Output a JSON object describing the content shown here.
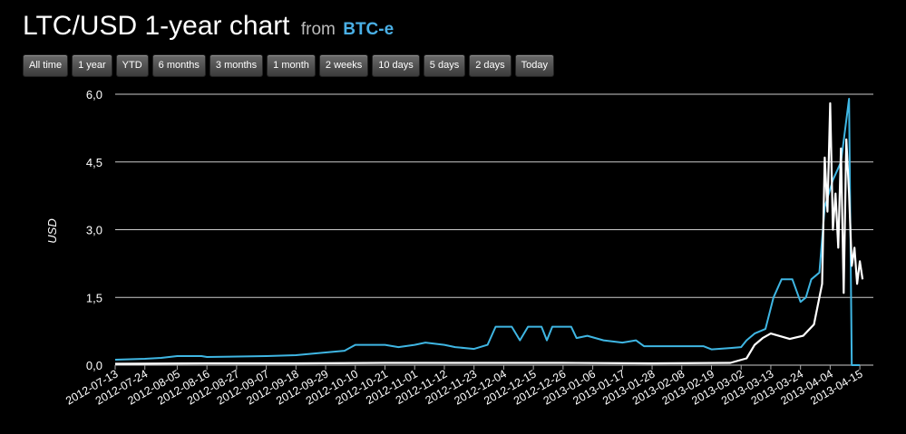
{
  "header": {
    "title": "LTC/USD 1-year chart",
    "from_label": "from",
    "source": "BTC-e"
  },
  "range_buttons": [
    "All time",
    "1 year",
    "YTD",
    "6 months",
    "3 months",
    "1 month",
    "2 weeks",
    "10 days",
    "5 days",
    "2 days",
    "Today"
  ],
  "colors": {
    "blue_series": "#3fb6e3",
    "white_series": "#ffffff",
    "grid": "#cccccc",
    "background": "#000000",
    "accent": "#4ab0e6"
  },
  "chart_data": {
    "type": "line",
    "ylabel": "USD",
    "ylim": [
      0,
      6
    ],
    "y_ticks": [
      "0,0",
      "1,5",
      "3,0",
      "4,5",
      "6,0"
    ],
    "y_tick_values": [
      0,
      1.5,
      3.0,
      4.5,
      6.0
    ],
    "xlim": [
      "2012-07-13",
      "2013-04-20"
    ],
    "x_ticks": [
      "2012-07-13",
      "2012-07-24",
      "2012-08-05",
      "2012-08-16",
      "2012-08-27",
      "2012-09-07",
      "2012-09-18",
      "2012-09-29",
      "2012-10-10",
      "2012-10-21",
      "2012-11-01",
      "2012-11-12",
      "2012-11-23",
      "2012-12-04",
      "2012-12-15",
      "2012-12-26",
      "2013-01-06",
      "2013-01-17",
      "2013-01-28",
      "2013-02-08",
      "2013-02-19",
      "2013-03-02",
      "2013-03-13",
      "2013-03-24",
      "2013-04-04",
      "2013-04-15"
    ],
    "grid": true,
    "series": [
      {
        "color": "#3fb6e3",
        "points": [
          [
            "2012-07-13",
            0.12
          ],
          [
            "2012-07-24",
            0.14
          ],
          [
            "2012-07-30",
            0.16
          ],
          [
            "2012-08-05",
            0.2
          ],
          [
            "2012-08-14",
            0.2
          ],
          [
            "2012-08-16",
            0.18
          ],
          [
            "2012-09-07",
            0.2
          ],
          [
            "2012-09-18",
            0.22
          ],
          [
            "2012-09-29",
            0.28
          ],
          [
            "2012-10-06",
            0.32
          ],
          [
            "2012-10-10",
            0.45
          ],
          [
            "2012-10-21",
            0.45
          ],
          [
            "2012-10-26",
            0.4
          ],
          [
            "2012-11-01",
            0.45
          ],
          [
            "2012-11-05",
            0.5
          ],
          [
            "2012-11-12",
            0.45
          ],
          [
            "2012-11-16",
            0.4
          ],
          [
            "2012-11-23",
            0.36
          ],
          [
            "2012-11-28",
            0.45
          ],
          [
            "2012-12-01",
            0.85
          ],
          [
            "2012-12-07",
            0.85
          ],
          [
            "2012-12-10",
            0.55
          ],
          [
            "2012-12-13",
            0.85
          ],
          [
            "2012-12-18",
            0.85
          ],
          [
            "2012-12-20",
            0.55
          ],
          [
            "2012-12-22",
            0.85
          ],
          [
            "2012-12-29",
            0.85
          ],
          [
            "2012-12-31",
            0.6
          ],
          [
            "2013-01-04",
            0.65
          ],
          [
            "2013-01-10",
            0.55
          ],
          [
            "2013-01-17",
            0.5
          ],
          [
            "2013-01-22",
            0.55
          ],
          [
            "2013-01-25",
            0.42
          ],
          [
            "2013-02-08",
            0.42
          ],
          [
            "2013-02-16",
            0.42
          ],
          [
            "2013-02-19",
            0.35
          ],
          [
            "2013-02-26",
            0.38
          ],
          [
            "2013-03-02",
            0.4
          ],
          [
            "2013-03-04",
            0.55
          ],
          [
            "2013-03-07",
            0.7
          ],
          [
            "2013-03-11",
            0.8
          ],
          [
            "2013-03-14",
            1.5
          ],
          [
            "2013-03-17",
            1.9
          ],
          [
            "2013-03-21",
            1.9
          ],
          [
            "2013-03-24",
            1.4
          ],
          [
            "2013-03-26",
            1.5
          ],
          [
            "2013-03-28",
            1.9
          ],
          [
            "2013-03-31",
            2.05
          ],
          [
            "2013-04-02",
            3.5
          ],
          [
            "2013-04-05",
            4.1
          ],
          [
            "2013-04-08",
            4.5
          ],
          [
            "2013-04-11",
            5.9
          ],
          [
            "2013-04-12",
            0.0
          ],
          [
            "2013-04-15",
            0.0
          ]
        ]
      },
      {
        "color": "#ffffff",
        "points": [
          [
            "2012-07-13",
            0.03
          ],
          [
            "2012-08-16",
            0.04
          ],
          [
            "2012-09-18",
            0.04
          ],
          [
            "2012-10-21",
            0.05
          ],
          [
            "2012-11-23",
            0.05
          ],
          [
            "2012-12-26",
            0.05
          ],
          [
            "2013-01-28",
            0.04
          ],
          [
            "2013-02-26",
            0.05
          ],
          [
            "2013-03-04",
            0.15
          ],
          [
            "2013-03-07",
            0.45
          ],
          [
            "2013-03-10",
            0.6
          ],
          [
            "2013-03-13",
            0.7
          ],
          [
            "2013-03-20",
            0.58
          ],
          [
            "2013-03-25",
            0.65
          ],
          [
            "2013-03-29",
            0.9
          ],
          [
            "2013-04-01",
            1.8
          ],
          [
            "2013-04-02",
            4.6
          ],
          [
            "2013-04-03",
            3.4
          ],
          [
            "2013-04-04",
            5.8
          ],
          [
            "2013-04-05",
            3.0
          ],
          [
            "2013-04-06",
            3.8
          ],
          [
            "2013-04-07",
            2.6
          ],
          [
            "2013-04-08",
            4.8
          ],
          [
            "2013-04-09",
            1.6
          ],
          [
            "2013-04-10",
            5.0
          ],
          [
            "2013-04-11",
            3.8
          ],
          [
            "2013-04-12",
            2.2
          ],
          [
            "2013-04-13",
            2.6
          ],
          [
            "2013-04-14",
            1.8
          ],
          [
            "2013-04-15",
            2.3
          ],
          [
            "2013-04-16",
            1.9
          ]
        ]
      }
    ]
  }
}
